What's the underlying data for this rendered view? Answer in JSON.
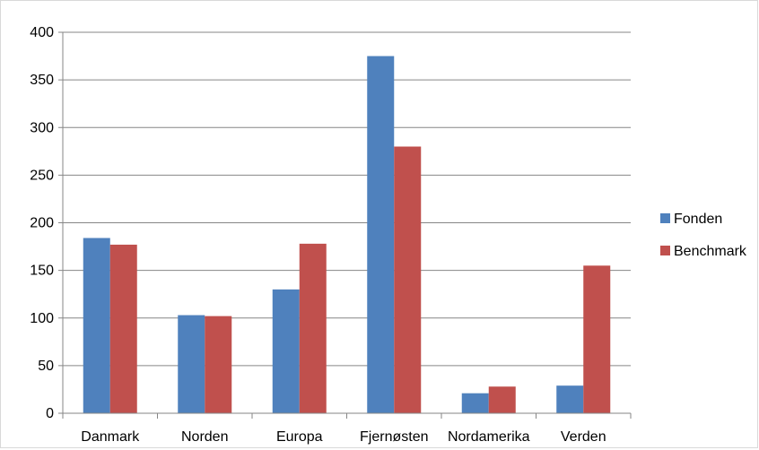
{
  "chart_data": {
    "type": "bar",
    "title": "",
    "xlabel": "",
    "ylabel": "",
    "categories": [
      "Danmark",
      "Norden",
      "Europa",
      "Fjernøsten",
      "Nordamerika",
      "Verden"
    ],
    "series": [
      {
        "name": "Fonden",
        "color": "#4f81bd",
        "values": [
          184,
          103,
          130,
          375,
          21,
          29
        ]
      },
      {
        "name": "Benchmark",
        "color": "#c0504d",
        "values": [
          177,
          102,
          178,
          280,
          28,
          155
        ]
      }
    ],
    "ylim": [
      0,
      400
    ],
    "yticks": [
      "0",
      "50",
      "100",
      "150",
      "200",
      "250",
      "300",
      "350",
      "400"
    ],
    "grid": true,
    "legend_position": "right"
  }
}
